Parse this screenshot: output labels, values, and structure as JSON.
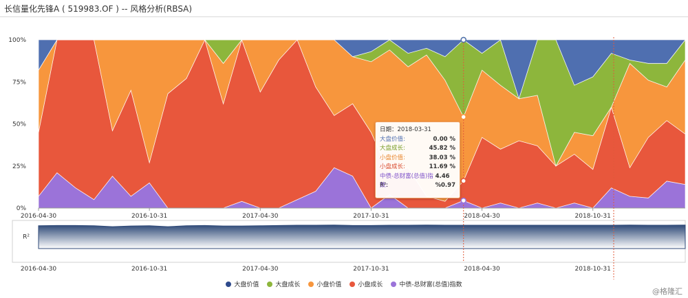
{
  "window": {
    "title": "长信量化先锋A ( 519983.OF ) -- 风格分析(RBSA)"
  },
  "chart_data": {
    "type": "area",
    "stacked": true,
    "ylim": [
      0,
      100
    ],
    "y_ticks": [
      "0%",
      "25%",
      "50%",
      "75%",
      "100%"
    ],
    "x_ticks": [
      "2016-04-30",
      "2016-10-31",
      "2017-04-30",
      "2017-10-31",
      "2018-04-30",
      "2018-10-31"
    ],
    "x": [
      "2016-04-30",
      "2016-05-31",
      "2016-06-30",
      "2016-07-31",
      "2016-08-31",
      "2016-09-30",
      "2016-10-31",
      "2016-11-30",
      "2016-12-31",
      "2017-01-31",
      "2017-02-28",
      "2017-03-31",
      "2017-04-30",
      "2017-05-31",
      "2017-06-30",
      "2017-07-31",
      "2017-08-31",
      "2017-09-30",
      "2017-10-31",
      "2017-11-30",
      "2017-12-31",
      "2018-01-31",
      "2018-02-28",
      "2018-03-31",
      "2018-04-30",
      "2018-05-31",
      "2018-06-30",
      "2018-07-31",
      "2018-08-31",
      "2018-09-30",
      "2018-10-31",
      "2018-11-30",
      "2018-12-31",
      "2019-01-31",
      "2019-02-28",
      "2019-03-31"
    ],
    "series": [
      {
        "name": "中债-总财富(总值)指数",
        "color": "#9b73d9",
        "values": [
          7,
          21,
          12,
          5,
          19,
          7,
          15,
          0,
          0,
          0,
          0,
          4,
          0,
          0,
          5,
          10,
          24,
          19,
          0,
          8,
          0,
          0,
          0,
          4.46,
          0,
          3,
          0,
          3,
          0,
          3,
          0,
          12,
          7,
          6,
          16,
          14
        ]
      },
      {
        "name": "小盘成长",
        "color": "#e8573c",
        "values": [
          38,
          79,
          88,
          95,
          27,
          63,
          12,
          68,
          77,
          100,
          62,
          96,
          69,
          88,
          95,
          62,
          31,
          43,
          45,
          12,
          24,
          7,
          4,
          11.69,
          42,
          32,
          40,
          34,
          25,
          29,
          23,
          48,
          17,
          36,
          36,
          30
        ]
      },
      {
        "name": "小盘价值",
        "color": "#f7963d",
        "values": [
          37,
          0,
          0,
          0,
          54,
          30,
          73,
          32,
          23,
          0,
          24,
          0,
          31,
          12,
          0,
          28,
          45,
          28,
          42,
          74,
          60,
          84,
          72,
          38.03,
          40,
          38,
          25,
          30,
          0,
          13,
          20,
          0,
          62,
          34,
          20,
          44
        ]
      },
      {
        "name": "大盘成长",
        "color": "#8db63c",
        "values": [
          0,
          0,
          0,
          0,
          0,
          0,
          0,
          0,
          0,
          0,
          14,
          0,
          0,
          0,
          0,
          0,
          0,
          0,
          6,
          6,
          8,
          4,
          14,
          45.82,
          10,
          27,
          0,
          33,
          75,
          28,
          35,
          32,
          2,
          10,
          14,
          12
        ]
      },
      {
        "name": "大盘价值",
        "color": "#4f6fb0",
        "values": [
          18,
          0,
          0,
          0,
          0,
          0,
          0,
          0,
          0,
          0,
          0,
          0,
          0,
          0,
          0,
          0,
          0,
          10,
          7,
          0,
          8,
          5,
          10,
          0.0,
          8,
          0,
          35,
          0,
          0,
          27,
          22,
          8,
          12,
          14,
          14,
          0
        ]
      }
    ],
    "r2_label": "R²",
    "r2_values": [
      0.95,
      0.96,
      0.96,
      0.95,
      0.91,
      0.94,
      0.95,
      0.91,
      0.95,
      0.96,
      0.94,
      0.94,
      0.95,
      0.96,
      0.97,
      0.97,
      0.98,
      0.96,
      0.96,
      0.97,
      0.97,
      0.98,
      0.97,
      0.97,
      0.97,
      0.97,
      0.97,
      0.97,
      0.97,
      0.97,
      0.97,
      0.97,
      0.98,
      0.97,
      0.97,
      0.98
    ],
    "legend_order": [
      "大盘价值",
      "大盘成长",
      "小盘价值",
      "小盘成长",
      "中债-总财富(总值)指数"
    ],
    "tooltip_index": 23
  },
  "tooltip": {
    "date_label": "日期：2018-03-31",
    "rows": [
      {
        "label": "大盘价值:",
        "value": "0.00 %",
        "color": "#4f6fb0"
      },
      {
        "label": "大盘成长:",
        "value": "45.82 %",
        "color": "#7a9e2a"
      },
      {
        "label": "小盘价值:",
        "value": "38.03 %",
        "color": "#e8862d"
      },
      {
        "label": "小盘成长:",
        "value": "11.69 %",
        "color": "#d94b2f"
      },
      {
        "label": "中债-总财富(总值)指数:",
        "value": "4.46 %",
        "color": "#7b4fc9"
      },
      {
        "label": "R²:",
        "value": "0.97",
        "color": "#333333"
      }
    ]
  },
  "watermark": "@格隆汇"
}
